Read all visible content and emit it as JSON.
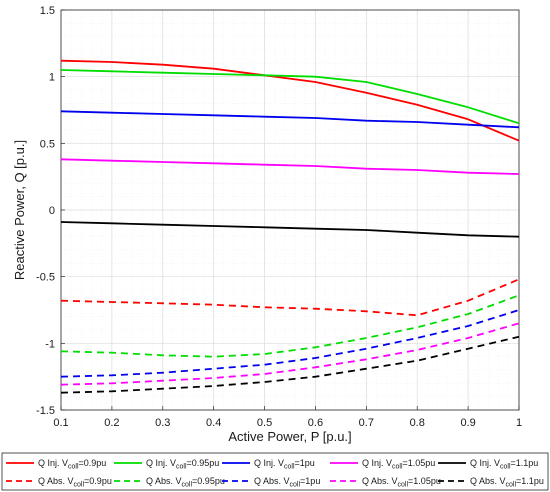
{
  "chart_data": {
    "type": "line",
    "title": "",
    "xlabel": "Active Power, P [p.u.]",
    "ylabel": "Reactive Power, Q [p.u.]",
    "xlim": [
      0.1,
      1.0
    ],
    "ylim": [
      -1.5,
      1.5
    ],
    "grid": true,
    "minor_grid": true,
    "legend_placement": "bottom-outside",
    "x_ticks": [
      "0.1",
      "0.2",
      "0.3",
      "0.4",
      "0.5",
      "0.6",
      "0.7",
      "0.8",
      "0.9",
      "1"
    ],
    "y_ticks": [
      "-1.5",
      "-1",
      "-0.5",
      "0",
      "0.5",
      "1",
      "1.5"
    ],
    "x": [
      0.1,
      0.2,
      0.3,
      0.4,
      0.5,
      0.6,
      0.7,
      0.8,
      0.9,
      1.0
    ],
    "series": [
      {
        "legend_prefix": "Q Inj. V",
        "legend_sub": "coll",
        "legend_suffix": "=0.9pu",
        "color": "#ff0000",
        "dash": "solid",
        "values": [
          1.12,
          1.11,
          1.09,
          1.06,
          1.01,
          0.96,
          0.88,
          0.79,
          0.68,
          0.52
        ]
      },
      {
        "legend_prefix": "Q Inj. V",
        "legend_sub": "coll",
        "legend_suffix": "=0.95pu",
        "color": "#00dd00",
        "dash": "solid",
        "values": [
          1.05,
          1.04,
          1.03,
          1.02,
          1.01,
          1.0,
          0.96,
          0.87,
          0.77,
          0.65
        ]
      },
      {
        "legend_prefix": "Q Inj. V",
        "legend_sub": "coll",
        "legend_suffix": "=1pu",
        "color": "#0000ee",
        "dash": "solid",
        "values": [
          0.74,
          0.73,
          0.72,
          0.71,
          0.7,
          0.69,
          0.67,
          0.66,
          0.64,
          0.62
        ]
      },
      {
        "legend_prefix": "Q Inj. V",
        "legend_sub": "coll",
        "legend_suffix": "=1.05pu",
        "color": "#ff00ff",
        "dash": "solid",
        "values": [
          0.38,
          0.37,
          0.36,
          0.35,
          0.34,
          0.33,
          0.31,
          0.3,
          0.28,
          0.27
        ]
      },
      {
        "legend_prefix": "Q Inj. V",
        "legend_sub": "coll",
        "legend_suffix": "=1.1pu",
        "color": "#000000",
        "dash": "solid",
        "values": [
          -0.09,
          -0.1,
          -0.11,
          -0.12,
          -0.13,
          -0.14,
          -0.15,
          -0.17,
          -0.19,
          -0.2
        ]
      },
      {
        "legend_prefix": "Q Abs. V",
        "legend_sub": "coll",
        "legend_suffix": "=0.9pu",
        "color": "#ff0000",
        "dash": "dashed",
        "values": [
          -0.68,
          -0.69,
          -0.7,
          -0.71,
          -0.73,
          -0.74,
          -0.76,
          -0.79,
          -0.68,
          -0.52
        ]
      },
      {
        "legend_prefix": "Q Abs. V",
        "legend_sub": "coll",
        "legend_suffix": "=0.95pu",
        "color": "#00dd00",
        "dash": "dashed",
        "values": [
          -1.06,
          -1.07,
          -1.09,
          -1.1,
          -1.08,
          -1.03,
          -0.96,
          -0.88,
          -0.78,
          -0.64
        ]
      },
      {
        "legend_prefix": "Q Abs. V",
        "legend_sub": "coll",
        "legend_suffix": "=1pu",
        "color": "#0000ee",
        "dash": "dashed",
        "values": [
          -1.25,
          -1.24,
          -1.22,
          -1.19,
          -1.16,
          -1.11,
          -1.04,
          -0.96,
          -0.87,
          -0.75
        ]
      },
      {
        "legend_prefix": "Q Abs. V",
        "legend_sub": "coll",
        "legend_suffix": "=1.05pu",
        "color": "#ff00ff",
        "dash": "dashed",
        "values": [
          -1.31,
          -1.3,
          -1.28,
          -1.26,
          -1.23,
          -1.18,
          -1.12,
          -1.05,
          -0.96,
          -0.85
        ]
      },
      {
        "legend_prefix": "Q Abs. V",
        "legend_sub": "coll",
        "legend_suffix": "=1.1pu",
        "color": "#000000",
        "dash": "dashed",
        "values": [
          -1.37,
          -1.36,
          -1.34,
          -1.32,
          -1.29,
          -1.25,
          -1.19,
          -1.13,
          -1.04,
          -0.95
        ]
      }
    ]
  }
}
